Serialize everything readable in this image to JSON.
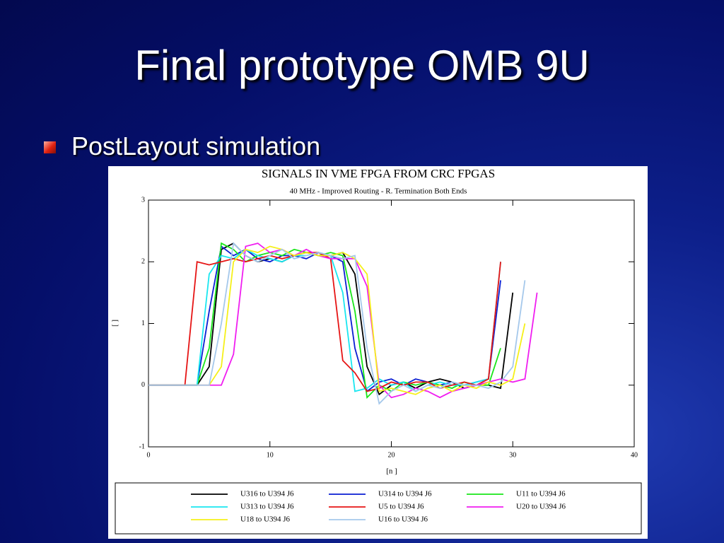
{
  "slide": {
    "title": "Final prototype OMB 9U",
    "bullet": "PostLayout simulation"
  },
  "chart_data": {
    "type": "line",
    "title": "SIGNALS IN VME FPGA FROM CRC FPGAS",
    "subtitle": "40 MHz - Improved Routing - R. Termination Both Ends",
    "x_label": "[n ]",
    "y_label": "[ ]",
    "xlim": [
      0,
      40
    ],
    "xticks": [
      0,
      10,
      20,
      30,
      40
    ],
    "ylim": [
      -1,
      3
    ],
    "yticks": [
      -1,
      0,
      1,
      2,
      3
    ],
    "x": [
      0,
      1,
      2,
      3,
      4,
      5,
      6,
      7,
      8,
      9,
      10,
      11,
      12,
      13,
      14,
      15,
      16,
      17,
      18,
      19,
      20,
      21,
      22,
      23,
      24,
      25,
      26,
      27,
      28,
      29,
      30,
      31,
      32
    ],
    "series": [
      {
        "name": "U316 to U394 J6",
        "color": "#000000",
        "values": [
          0,
          0,
          0,
          0,
          0,
          0.3,
          2.2,
          2.3,
          2.1,
          2.0,
          2.05,
          2.0,
          2.1,
          2.15,
          2.1,
          2.1,
          2.15,
          1.8,
          0.3,
          -0.15,
          0.0,
          0.05,
          -0.05,
          0.05,
          0.1,
          0.05,
          -0.05,
          0.0,
          0.0,
          -0.05,
          1.5,
          null,
          null
        ]
      },
      {
        "name": "U314 to U394 J6",
        "color": "#0a1ed2",
        "values": [
          0,
          0,
          0,
          0,
          0,
          1.2,
          2.25,
          2.1,
          2.2,
          2.05,
          2.0,
          2.1,
          2.1,
          2.05,
          2.15,
          2.1,
          2.0,
          0.6,
          -0.1,
          0.05,
          0.1,
          0.0,
          0.1,
          0.05,
          0.0,
          0.05,
          0.0,
          0.05,
          0.1,
          1.7,
          null,
          null,
          null
        ]
      },
      {
        "name": "U11 to U394 J6",
        "color": "#19e619",
        "values": [
          0,
          0,
          0,
          0,
          0,
          0.6,
          2.3,
          2.2,
          2.0,
          2.1,
          2.15,
          2.1,
          2.2,
          2.15,
          2.1,
          2.15,
          2.1,
          1.2,
          -0.2,
          0.0,
          -0.1,
          0.05,
          0.0,
          0.05,
          0.0,
          -0.05,
          0.05,
          0.0,
          0.0,
          0.6,
          null,
          null,
          null
        ]
      },
      {
        "name": "U313 to U394 J6",
        "color": "#19e6f0",
        "values": [
          0,
          0,
          0,
          0,
          0,
          1.8,
          2.1,
          2.05,
          2.2,
          2.1,
          2.05,
          2.0,
          2.1,
          2.1,
          2.15,
          2.1,
          1.5,
          -0.1,
          -0.05,
          0.1,
          0.0,
          0.05,
          -0.1,
          0.0,
          0.05,
          0.0,
          0.0,
          0.05,
          0.1,
          2.0,
          null,
          null,
          null
        ]
      },
      {
        "name": "U5 to U394 J6",
        "color": "#e61414",
        "values": [
          0,
          0,
          0,
          0,
          2.0,
          1.95,
          2.0,
          2.05,
          2.0,
          2.05,
          2.1,
          2.05,
          2.1,
          2.15,
          2.15,
          2.05,
          0.4,
          0.2,
          -0.1,
          -0.05,
          0.05,
          0.0,
          0.05,
          0.05,
          -0.05,
          0.0,
          0.05,
          0.0,
          0.1,
          2.0,
          null,
          null,
          null
        ]
      },
      {
        "name": "U20 to U394 J6",
        "color": "#f01ef0",
        "values": [
          0,
          0,
          0,
          0,
          0,
          0,
          0,
          0.5,
          2.25,
          2.3,
          2.15,
          2.2,
          2.1,
          2.2,
          2.1,
          2.05,
          2.05,
          2.05,
          1.6,
          0.0,
          -0.2,
          -0.15,
          -0.05,
          -0.1,
          -0.2,
          -0.1,
          -0.05,
          0.0,
          0.05,
          0.1,
          0.05,
          0.1,
          1.5
        ]
      },
      {
        "name": "U18 to U394 J6",
        "color": "#f5f019",
        "values": [
          0,
          0,
          0,
          0,
          0,
          0,
          0.3,
          2.0,
          2.2,
          2.15,
          2.25,
          2.2,
          2.1,
          2.15,
          2.1,
          2.1,
          2.15,
          2.05,
          1.8,
          -0.1,
          -0.05,
          -0.1,
          -0.15,
          -0.05,
          0.0,
          -0.1,
          0.0,
          -0.05,
          0.05,
          0.0,
          0.1,
          1.0,
          null
        ]
      },
      {
        "name": "U16 to U394 J6",
        "color": "#a5c8eb",
        "values": [
          0,
          0,
          0,
          0,
          0,
          0,
          1.0,
          2.3,
          2.1,
          2.0,
          2.1,
          2.2,
          2.05,
          2.1,
          2.15,
          2.1,
          2.05,
          2.1,
          0.6,
          -0.3,
          -0.1,
          0.0,
          -0.1,
          0.0,
          -0.05,
          0.05,
          0.0,
          0.0,
          -0.05,
          0.05,
          0.3,
          1.7,
          null
        ]
      }
    ]
  }
}
